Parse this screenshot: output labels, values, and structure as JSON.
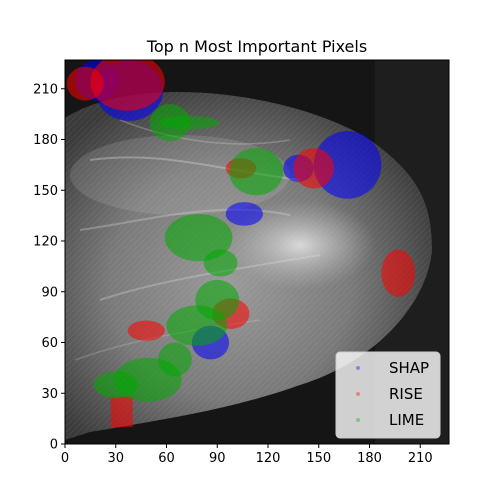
{
  "chart_data": {
    "type": "scatter",
    "title": "Top n Most Important Pixels",
    "xlabel": "",
    "ylabel": "",
    "xlim": [
      0,
      227
    ],
    "ylim": [
      0,
      227
    ],
    "x_ticks": [
      0,
      30,
      60,
      90,
      120,
      150,
      180,
      210
    ],
    "y_ticks": [
      0,
      30,
      60,
      90,
      120,
      150,
      180,
      210
    ],
    "grid": false,
    "legend_position": "lower-right",
    "background": "grayscale mammogram image",
    "series": [
      {
        "name": "SHAP",
        "color": "#0000ff",
        "regions": [
          {
            "type": "ellipse",
            "cx": 38,
            "cy": 209,
            "rx": 20,
            "ry": 18
          },
          {
            "type": "ellipse",
            "cx": 19,
            "cy": 215,
            "rx": 13,
            "ry": 12
          },
          {
            "type": "ellipse",
            "cx": 167,
            "cy": 165,
            "rx": 20,
            "ry": 20
          },
          {
            "type": "ellipse",
            "cx": 138,
            "cy": 163,
            "rx": 9,
            "ry": 8
          },
          {
            "type": "ellipse",
            "cx": 86,
            "cy": 60,
            "rx": 11,
            "ry": 10
          },
          {
            "type": "ellipse",
            "cx": 106,
            "cy": 136,
            "rx": 11,
            "ry": 7
          }
        ]
      },
      {
        "name": "RISE",
        "color": "#ff0000",
        "regions": [
          {
            "type": "ellipse",
            "cx": 12,
            "cy": 213,
            "rx": 11,
            "ry": 10
          },
          {
            "type": "ellipse",
            "cx": 37,
            "cy": 214,
            "rx": 22,
            "ry": 17
          },
          {
            "type": "ellipse",
            "cx": 147,
            "cy": 163,
            "rx": 12,
            "ry": 12
          },
          {
            "type": "ellipse",
            "cx": 104,
            "cy": 163,
            "rx": 9,
            "ry": 6
          },
          {
            "type": "ellipse",
            "cx": 98,
            "cy": 77,
            "rx": 11,
            "ry": 9
          },
          {
            "type": "ellipse",
            "cx": 48,
            "cy": 67,
            "rx": 11,
            "ry": 6
          },
          {
            "type": "rect",
            "x0": 27,
            "y0": 10,
            "x1": 40,
            "y1": 28
          },
          {
            "type": "ellipse",
            "cx": 197,
            "cy": 101,
            "rx": 10,
            "ry": 14
          }
        ]
      },
      {
        "name": "LIME",
        "color": "#00aa00",
        "regions": [
          {
            "type": "ellipse",
            "cx": 62,
            "cy": 190,
            "rx": 12,
            "ry": 11
          },
          {
            "type": "ellipse",
            "cx": 73,
            "cy": 190,
            "rx": 18,
            "ry": 4
          },
          {
            "type": "ellipse",
            "cx": 113,
            "cy": 161,
            "rx": 16,
            "ry": 14
          },
          {
            "type": "ellipse",
            "cx": 79,
            "cy": 122,
            "rx": 20,
            "ry": 14
          },
          {
            "type": "ellipse",
            "cx": 92,
            "cy": 107,
            "rx": 10,
            "ry": 8
          },
          {
            "type": "ellipse",
            "cx": 90,
            "cy": 85,
            "rx": 13,
            "ry": 12
          },
          {
            "type": "ellipse",
            "cx": 78,
            "cy": 70,
            "rx": 18,
            "ry": 12
          },
          {
            "type": "ellipse",
            "cx": 49,
            "cy": 38,
            "rx": 20,
            "ry": 13
          },
          {
            "type": "ellipse",
            "cx": 30,
            "cy": 35,
            "rx": 13,
            "ry": 8
          },
          {
            "type": "ellipse",
            "cx": 65,
            "cy": 50,
            "rx": 10,
            "ry": 10
          }
        ]
      }
    ]
  }
}
